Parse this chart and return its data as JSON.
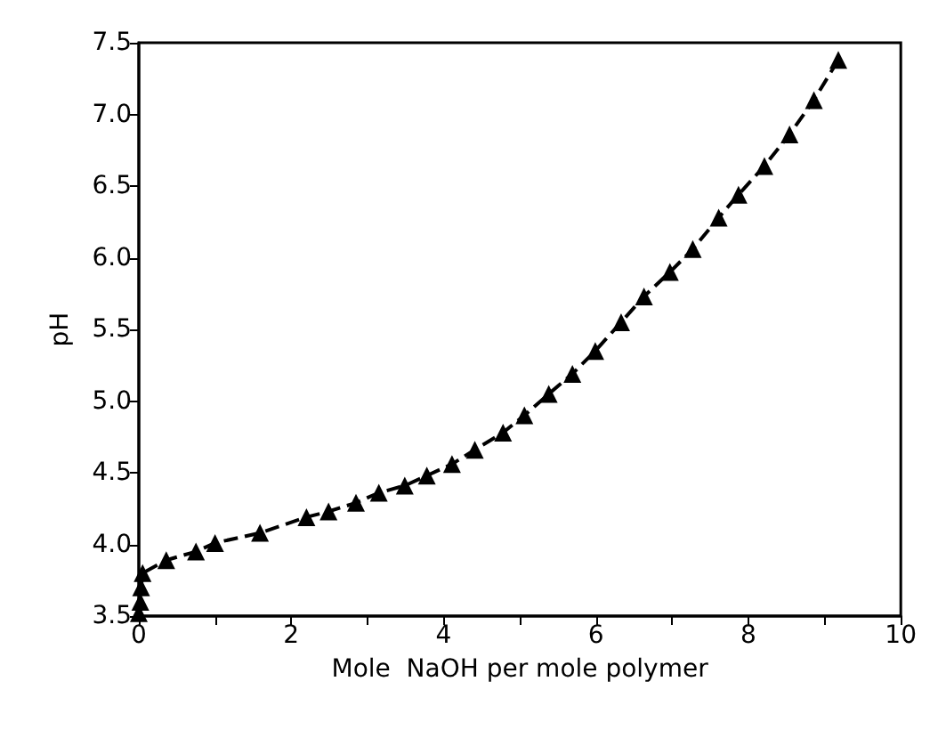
{
  "chart_data": {
    "type": "line",
    "xlabel": "Mole  NaOH per mole polymer",
    "ylabel": "pH",
    "marker": "triangle",
    "line_style": "dashed",
    "grid": false,
    "xlim": [
      0,
      10
    ],
    "ylim": [
      3.5,
      7.5
    ],
    "xticks": [
      0,
      {
        "value": 1,
        "label": null
      },
      2,
      {
        "value": 3,
        "label": null
      },
      4,
      {
        "value": 5,
        "label": null
      },
      6,
      {
        "value": 7,
        "label": null
      },
      8,
      {
        "value": 9,
        "label": null
      },
      10
    ],
    "yticks": [
      3.5,
      {
        "value": 4,
        "label": "4.0"
      },
      4.5,
      {
        "value": 5,
        "label": "5.0"
      },
      5.5,
      {
        "value": 6,
        "label": "6.0"
      },
      6.5,
      {
        "value": 7,
        "label": "7.0"
      },
      7.5
    ],
    "series": [
      {
        "color": "#000000",
        "x": [
          0,
          0.02,
          0.03,
          0.05,
          0.36,
          0.75,
          1.0,
          1.59,
          2.2,
          2.49,
          2.85,
          3.15,
          3.49,
          3.78,
          4.11,
          4.41,
          4.78,
          5.06,
          5.38,
          5.69,
          5.99,
          6.33,
          6.63,
          6.97,
          7.27,
          7.61,
          7.87,
          8.21,
          8.54,
          8.86,
          9.18
        ],
        "values": [
          3.52,
          3.6,
          3.7,
          3.8,
          3.89,
          3.95,
          4.01,
          4.08,
          4.19,
          4.23,
          4.29,
          4.36,
          4.41,
          4.48,
          4.56,
          4.66,
          4.78,
          4.9,
          5.05,
          5.19,
          5.35,
          5.55,
          5.73,
          5.9,
          6.06,
          6.28,
          6.44,
          6.64,
          6.86,
          7.1,
          7.38
        ]
      }
    ]
  }
}
